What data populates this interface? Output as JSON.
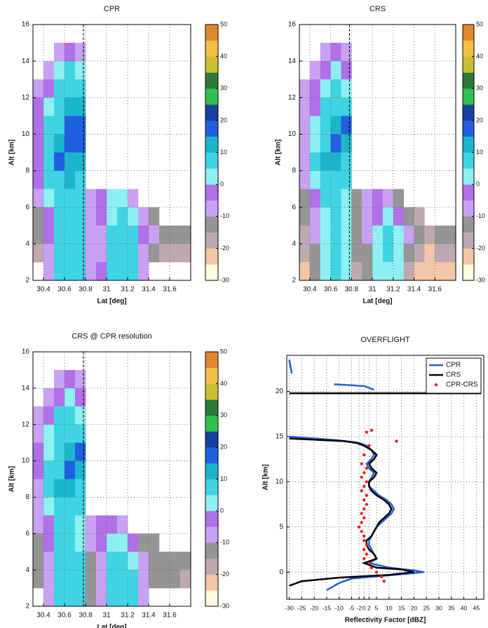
{
  "chart_data": [
    {
      "type": "heatmap",
      "title": "CPR",
      "xlabel": "Lat [deg]",
      "ylabel": "Alt [km]",
      "xlim": [
        30.3,
        31.8
      ],
      "xticks": [
        30.4,
        30.6,
        30.8,
        31,
        31.2,
        31.4,
        31.6
      ],
      "ylim": [
        2,
        16
      ],
      "yticks": [
        2,
        4,
        6,
        8,
        10,
        12,
        14,
        16
      ],
      "grid": true,
      "vline": 30.78,
      "clim": [
        -30,
        50
      ],
      "cticks": [
        -30,
        -20,
        -10,
        0,
        10,
        20,
        30,
        40,
        50
      ],
      "colormap": [
        "#fffbe0",
        "#f2c6a6",
        "#c0a8b0",
        "#959595",
        "#c8a2f2",
        "#b070e8",
        "#8ef0f0",
        "#40d4e2",
        "#1cb6cc",
        "#2060e0",
        "#18409c",
        "#30c050",
        "#2a7a3a",
        "#c8c030",
        "#f0c040",
        "#e08830"
      ],
      "x": [
        30.35,
        30.45,
        30.55,
        30.65,
        30.75,
        30.85,
        30.95,
        31.05,
        31.15,
        31.25,
        31.35,
        31.45,
        31.55,
        31.65,
        31.75
      ],
      "y": [
        15.5,
        14.5,
        13.5,
        12.5,
        11.5,
        10.5,
        9.5,
        8.5,
        7.5,
        6.5,
        5.5,
        4.5,
        3.5,
        2.5
      ],
      "z": [
        [
          null,
          null,
          null,
          null,
          null,
          null,
          null,
          null,
          null,
          null,
          null,
          null,
          null,
          null,
          null
        ],
        [
          null,
          null,
          -10,
          -5,
          -10,
          null,
          null,
          null,
          null,
          null,
          null,
          null,
          null,
          null,
          null
        ],
        [
          null,
          -10,
          0,
          5,
          0,
          null,
          null,
          null,
          null,
          null,
          null,
          null,
          null,
          null,
          null
        ],
        [
          -10,
          -5,
          5,
          5,
          5,
          null,
          null,
          null,
          null,
          null,
          null,
          null,
          null,
          null,
          null
        ],
        [
          -5,
          0,
          5,
          10,
          10,
          null,
          null,
          null,
          null,
          null,
          null,
          null,
          null,
          null,
          null
        ],
        [
          -5,
          5,
          5,
          15,
          18,
          null,
          null,
          null,
          null,
          null,
          null,
          null,
          null,
          null,
          null
        ],
        [
          -5,
          5,
          10,
          18,
          15,
          null,
          null,
          null,
          null,
          null,
          null,
          null,
          null,
          null,
          null
        ],
        [
          -5,
          8,
          15,
          10,
          10,
          null,
          null,
          null,
          null,
          null,
          null,
          null,
          null,
          null,
          null
        ],
        [
          -5,
          5,
          8,
          10,
          5,
          null,
          null,
          null,
          null,
          null,
          null,
          null,
          null,
          null,
          null
        ],
        [
          -10,
          0,
          5,
          8,
          5,
          -10,
          -5,
          0,
          0,
          -10,
          null,
          null,
          null,
          null,
          null
        ],
        [
          -15,
          -5,
          5,
          5,
          5,
          -10,
          -5,
          0,
          5,
          0,
          -10,
          -15,
          null,
          null,
          null
        ],
        [
          -15,
          -5,
          5,
          5,
          5,
          -10,
          -10,
          5,
          5,
          5,
          -5,
          -10,
          -15,
          -15,
          -15
        ],
        [
          -20,
          -10,
          5,
          5,
          5,
          -10,
          -10,
          5,
          5,
          5,
          -10,
          -15,
          -20,
          -20,
          -20
        ],
        [
          null,
          -10,
          5,
          5,
          5,
          -10,
          -5,
          5,
          5,
          5,
          -10,
          null,
          null,
          null,
          null
        ]
      ]
    },
    {
      "type": "heatmap",
      "title": "CRS",
      "xlabel": "Lat [deg]",
      "ylabel": "Alt [km]",
      "xlim": [
        30.3,
        31.8
      ],
      "xticks": [
        30.4,
        30.6,
        30.8,
        31,
        31.2,
        31.4,
        31.6
      ],
      "ylim": [
        2,
        16
      ],
      "yticks": [
        2,
        4,
        6,
        8,
        10,
        12,
        14,
        16
      ],
      "grid": true,
      "vline": 30.78,
      "clim": [
        -30,
        50
      ],
      "cticks": [
        -30,
        -20,
        -10,
        0,
        10,
        20,
        30,
        40,
        50
      ],
      "colormap": [
        "#fffbe0",
        "#f2c6a6",
        "#c0a8b0",
        "#959595",
        "#c8a2f2",
        "#b070e8",
        "#8ef0f0",
        "#40d4e2",
        "#1cb6cc",
        "#2060e0",
        "#18409c",
        "#30c050",
        "#2a7a3a",
        "#c8c030",
        "#f0c040",
        "#e08830"
      ],
      "x": [
        30.35,
        30.45,
        30.55,
        30.65,
        30.75,
        30.85,
        30.95,
        31.05,
        31.15,
        31.25,
        31.35,
        31.45,
        31.55,
        31.65,
        31.75
      ],
      "y": [
        15.5,
        14.5,
        13.5,
        12.5,
        11.5,
        10.5,
        9.5,
        8.5,
        7.5,
        6.5,
        5.5,
        4.5,
        3.5,
        2.5
      ],
      "z": [
        [
          null,
          null,
          null,
          null,
          null,
          null,
          null,
          null,
          null,
          null,
          null,
          null,
          null,
          null,
          null
        ],
        [
          null,
          null,
          -10,
          -5,
          -10,
          null,
          null,
          null,
          null,
          null,
          null,
          null,
          null,
          null,
          null
        ],
        [
          null,
          -10,
          -5,
          0,
          -5,
          null,
          null,
          null,
          null,
          null,
          null,
          null,
          null,
          null,
          null
        ],
        [
          -10,
          -5,
          0,
          5,
          0,
          null,
          null,
          null,
          null,
          null,
          null,
          null,
          null,
          null,
          null
        ],
        [
          -10,
          -5,
          5,
          5,
          5,
          null,
          null,
          null,
          null,
          null,
          null,
          null,
          null,
          null,
          null
        ],
        [
          -10,
          0,
          5,
          10,
          15,
          null,
          null,
          null,
          null,
          null,
          null,
          null,
          null,
          null,
          null
        ],
        [
          -10,
          0,
          5,
          15,
          10,
          null,
          null,
          null,
          null,
          null,
          null,
          null,
          null,
          null,
          null
        ],
        [
          -10,
          5,
          10,
          10,
          5,
          null,
          null,
          null,
          null,
          null,
          null,
          null,
          null,
          null,
          null
        ],
        [
          -10,
          0,
          5,
          5,
          5,
          null,
          null,
          null,
          null,
          null,
          null,
          null,
          null,
          null,
          null
        ],
        [
          -15,
          -5,
          5,
          5,
          0,
          -15,
          -10,
          -5,
          -10,
          -15,
          null,
          null,
          null,
          null,
          null
        ],
        [
          -15,
          -10,
          0,
          5,
          0,
          -15,
          -10,
          -5,
          0,
          -5,
          -15,
          -20,
          null,
          null,
          null
        ],
        [
          -20,
          -10,
          0,
          5,
          0,
          -15,
          -10,
          0,
          5,
          0,
          -10,
          -15,
          -20,
          -15,
          -15
        ],
        [
          -20,
          -15,
          0,
          5,
          0,
          -15,
          -15,
          0,
          5,
          0,
          -15,
          -20,
          -25,
          -20,
          -20
        ],
        [
          -25,
          -15,
          0,
          5,
          0,
          -20,
          -15,
          0,
          0,
          0,
          -20,
          -25,
          -25,
          -25,
          -25
        ]
      ]
    },
    {
      "type": "heatmap",
      "title": "CRS @ CPR resolution",
      "xlabel": "Lat [deg]",
      "ylabel": "Alt [km]",
      "xlim": [
        30.3,
        31.8
      ],
      "xticks": [
        30.4,
        30.6,
        30.8,
        31,
        31.2,
        31.4,
        31.6
      ],
      "ylim": [
        2,
        16
      ],
      "yticks": [
        2,
        4,
        6,
        8,
        10,
        12,
        14,
        16
      ],
      "grid": true,
      "vline": 30.78,
      "clim": [
        -30,
        50
      ],
      "cticks": [
        -30,
        -20,
        -10,
        0,
        10,
        20,
        30,
        40,
        50
      ],
      "colormap": [
        "#fffbe0",
        "#f2c6a6",
        "#c0a8b0",
        "#959595",
        "#c8a2f2",
        "#b070e8",
        "#8ef0f0",
        "#40d4e2",
        "#1cb6cc",
        "#2060e0",
        "#18409c",
        "#30c050",
        "#2a7a3a",
        "#c8c030",
        "#f0c040",
        "#e08830"
      ],
      "x": [
        30.35,
        30.45,
        30.55,
        30.65,
        30.75,
        30.85,
        30.95,
        31.05,
        31.15,
        31.25,
        31.35,
        31.45,
        31.55,
        31.65,
        31.75
      ],
      "y": [
        15.5,
        14.5,
        13.5,
        12.5,
        11.5,
        10.5,
        9.5,
        8.5,
        7.5,
        6.5,
        5.5,
        4.5,
        3.5,
        2.5
      ],
      "z": [
        [
          null,
          null,
          null,
          null,
          null,
          null,
          null,
          null,
          null,
          null,
          null,
          null,
          null,
          null,
          null
        ],
        [
          null,
          null,
          -10,
          -5,
          -10,
          null,
          null,
          null,
          null,
          null,
          null,
          null,
          null,
          null,
          null
        ],
        [
          null,
          -10,
          -5,
          0,
          -5,
          null,
          null,
          null,
          null,
          null,
          null,
          null,
          null,
          null,
          null
        ],
        [
          -10,
          -5,
          5,
          5,
          0,
          null,
          null,
          null,
          null,
          null,
          null,
          null,
          null,
          null,
          null
        ],
        [
          -10,
          0,
          5,
          5,
          5,
          null,
          null,
          null,
          null,
          null,
          null,
          null,
          null,
          null,
          null
        ],
        [
          -5,
          0,
          5,
          10,
          15,
          null,
          null,
          null,
          null,
          null,
          null,
          null,
          null,
          null,
          null
        ],
        [
          -5,
          5,
          5,
          15,
          10,
          null,
          null,
          null,
          null,
          null,
          null,
          null,
          null,
          null,
          null
        ],
        [
          -10,
          5,
          10,
          10,
          5,
          null,
          null,
          null,
          null,
          null,
          null,
          null,
          null,
          null,
          null
        ],
        [
          -10,
          0,
          5,
          5,
          5,
          null,
          null,
          null,
          null,
          null,
          null,
          null,
          null,
          null,
          null
        ],
        [
          -10,
          -5,
          5,
          5,
          0,
          -10,
          -5,
          -5,
          -10,
          null,
          null,
          null,
          null,
          null,
          null
        ],
        [
          -15,
          -5,
          5,
          5,
          0,
          -10,
          -5,
          0,
          0,
          -5,
          -15,
          -15,
          null,
          null,
          null
        ],
        [
          -15,
          -10,
          5,
          5,
          5,
          -15,
          -10,
          5,
          5,
          0,
          -10,
          -15,
          -15,
          -15,
          -15
        ],
        [
          -15,
          -10,
          5,
          5,
          5,
          -15,
          -10,
          5,
          5,
          5,
          -10,
          -15,
          -15,
          -15,
          -20
        ],
        [
          null,
          -10,
          5,
          5,
          5,
          -15,
          -10,
          5,
          5,
          5,
          -10,
          null,
          null,
          null,
          null
        ]
      ]
    },
    {
      "type": "profile",
      "title": "OVERFLIGHT",
      "xlabel": "Reflectivity Factor [dBZ]",
      "ylabel": "Alt [km]",
      "xlim": [
        -31,
        48
      ],
      "xticks": [
        -30,
        -25,
        -20,
        -15,
        -10,
        -5,
        -2,
        0,
        2,
        5,
        10,
        15,
        20,
        25,
        30,
        35,
        40,
        45
      ],
      "ylim": [
        -3,
        24
      ],
      "yticks": [
        0,
        5,
        10,
        15,
        20
      ],
      "grid": true,
      "legend": "upper right",
      "series": [
        {
          "name": "CPR",
          "color": "#1f5fd6",
          "mode": "lines",
          "x": [
            -30,
            -29,
            null,
            -12,
            0,
            4,
            null,
            -30,
            -10,
            -2,
            1,
            3,
            4,
            3,
            1,
            2,
            4,
            3,
            2,
            2,
            4,
            6,
            9,
            11,
            12,
            11,
            9,
            7,
            5,
            4,
            3,
            2,
            2,
            3,
            4,
            5,
            2,
            10,
            20,
            24,
            12,
            -5,
            -10,
            -15
          ],
          "y": [
            23.5,
            22,
            null,
            20.8,
            20.6,
            20.2,
            null,
            15,
            14.6,
            14.3,
            14,
            13.5,
            13,
            12.5,
            12,
            11.5,
            11,
            10.5,
            10,
            9.5,
            9,
            8.5,
            8,
            7.5,
            7,
            6.5,
            6,
            5.5,
            5,
            4.5,
            4,
            3.5,
            3,
            2.5,
            2,
            1.5,
            1,
            0.5,
            0.2,
            0,
            -0.3,
            -0.7,
            -1.2,
            -2
          ]
        },
        {
          "name": "CRS",
          "color": "#000000",
          "mode": "lines",
          "x": [
            -30,
            47,
            null,
            -30,
            -8,
            -3,
            0,
            3,
            5,
            4,
            2,
            3,
            5,
            4,
            2,
            2,
            3,
            5,
            8,
            10,
            11,
            10,
            8,
            6,
            5,
            4,
            3,
            1,
            1,
            2,
            4,
            5,
            0,
            5,
            15,
            20,
            10,
            -10,
            -25,
            -30
          ],
          "y": [
            19.8,
            19.8,
            null,
            14.8,
            14.5,
            14.3,
            14,
            13.5,
            13,
            12.5,
            12,
            11.5,
            11,
            10.5,
            10,
            9.5,
            9,
            8.5,
            8,
            7.5,
            7,
            6.5,
            6,
            5.5,
            5,
            4.5,
            4,
            3.5,
            3,
            2.5,
            2,
            1.5,
            1,
            0.5,
            0.3,
            0,
            -0.3,
            -0.6,
            -1,
            -1.5
          ]
        },
        {
          "name": "CPR-CRS",
          "color": "#e02020",
          "mode": "markers",
          "x": [
            1,
            3,
            13,
            2,
            0,
            -1,
            1,
            0,
            -1,
            1,
            0,
            -1,
            1,
            0,
            1,
            0,
            -1,
            0,
            -1,
            -2,
            -1,
            0,
            0,
            1,
            0,
            1,
            0,
            2,
            3,
            5,
            7,
            8
          ],
          "y": [
            15.5,
            15.7,
            14.5,
            14,
            13,
            12,
            11.5,
            11,
            10.5,
            10,
            9.5,
            9,
            8.5,
            8,
            7.5,
            7,
            6.5,
            6,
            5.5,
            5,
            4.5,
            4,
            3.5,
            3,
            2.5,
            2,
            1.5,
            1,
            0.5,
            0,
            -0.5,
            -1
          ]
        }
      ]
    }
  ]
}
